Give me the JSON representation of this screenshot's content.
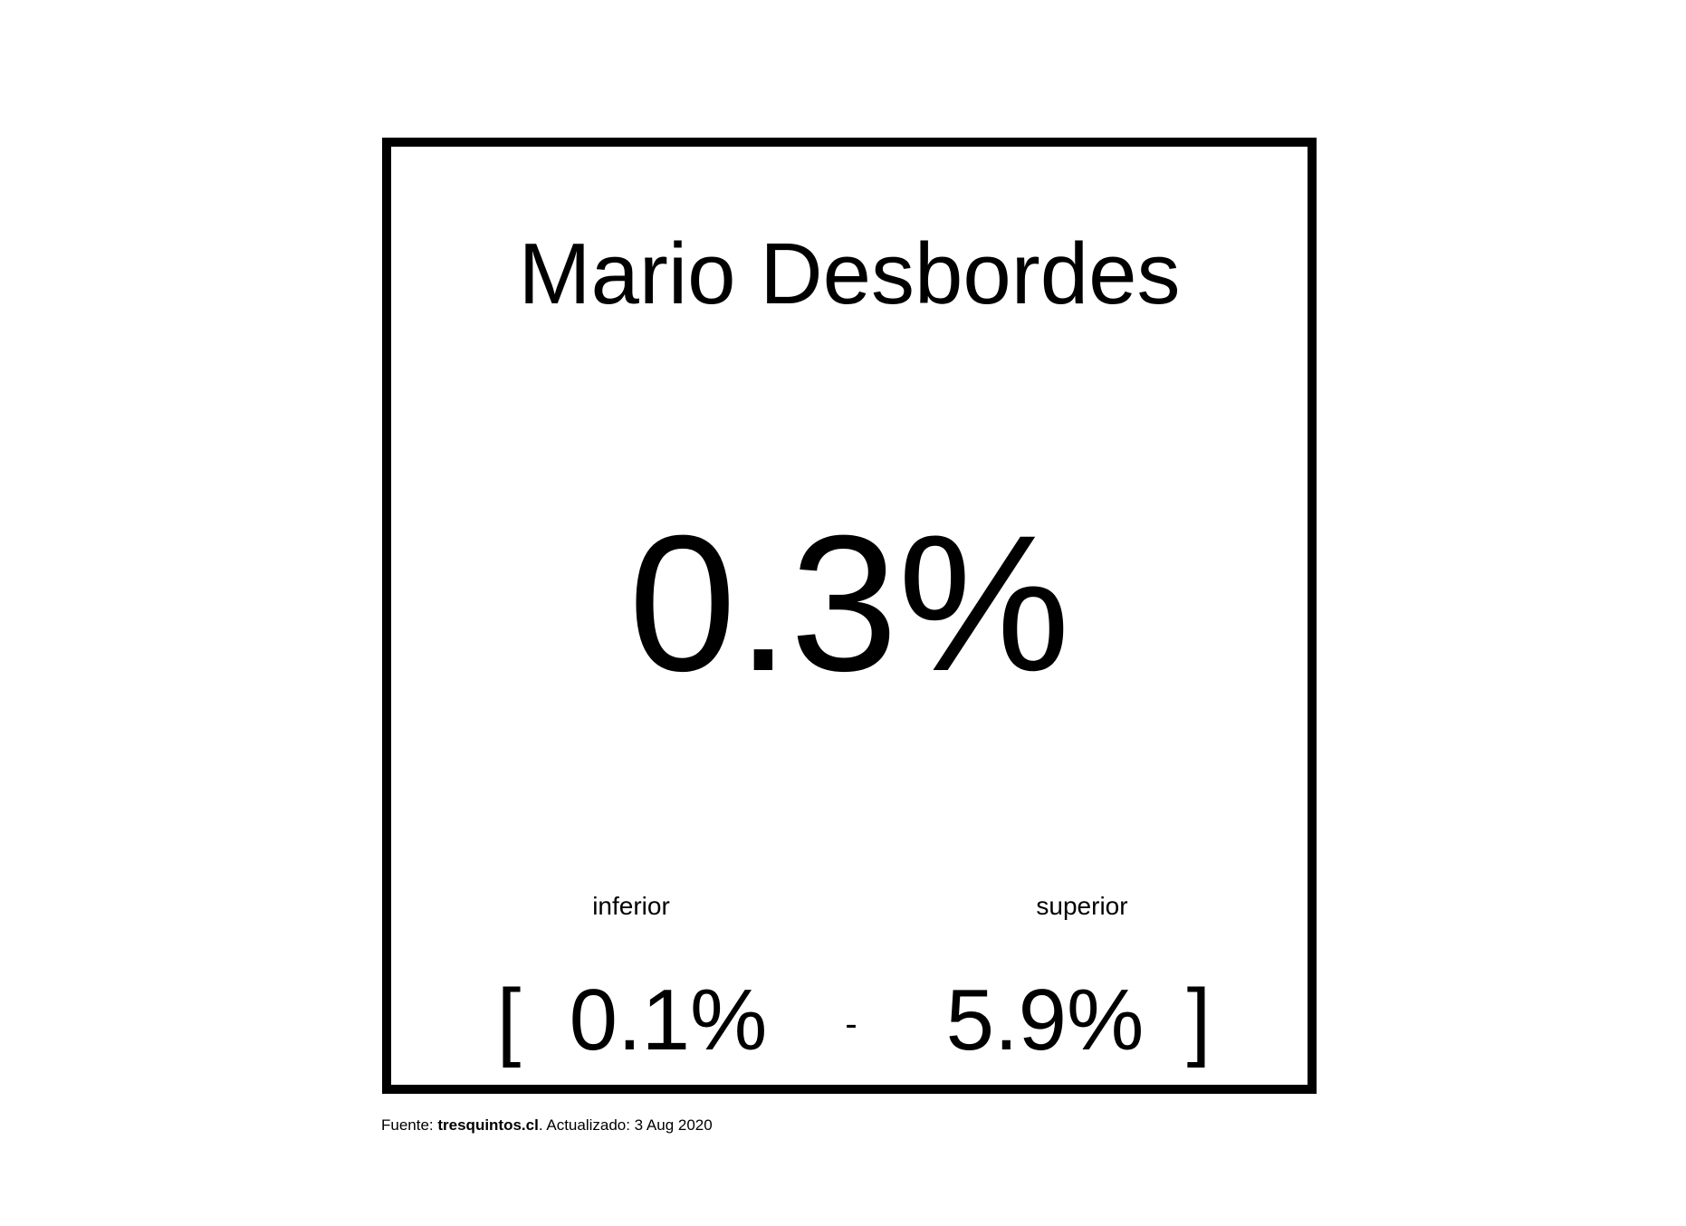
{
  "card": {
    "name": "Mario Desbordes",
    "value": "0.3%",
    "lower_label": "inferior",
    "upper_label": "superior",
    "bracket_open": "[",
    "lower_value": "0.1%",
    "separator": "-",
    "upper_value": "5.9%",
    "bracket_close": "]"
  },
  "footer": {
    "prefix": "Fuente: ",
    "source": "tresquintos.cl",
    "suffix": ". Actualizado: 3 Aug 2020"
  },
  "colors": {
    "text": "#000000",
    "border": "#000000",
    "background": "#ffffff"
  }
}
